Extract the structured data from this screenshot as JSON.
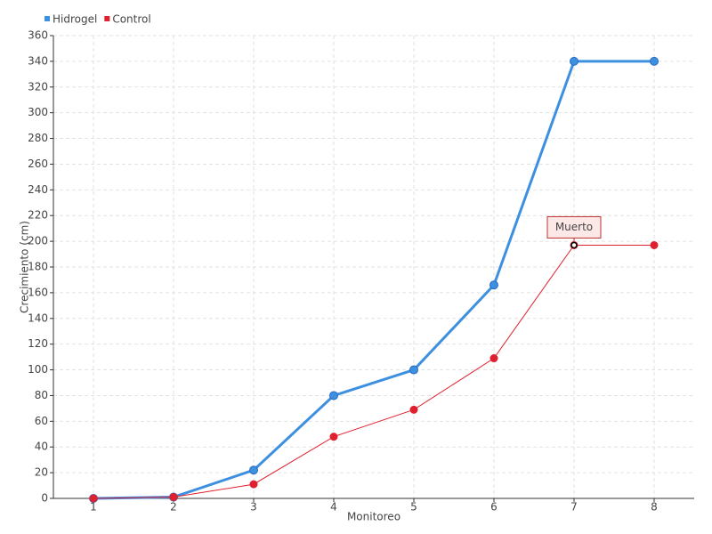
{
  "chart_data": {
    "type": "line",
    "x_label": "Monitoreo",
    "y_label": "Crecimiento (cm)",
    "categories": [
      "1",
      "2",
      "3",
      "4",
      "5",
      "6",
      "7",
      "8"
    ],
    "series": [
      {
        "name": "Hidrogel",
        "color": "#3d8fe0",
        "values": [
          0,
          1,
          22,
          80,
          100,
          166,
          340,
          340
        ]
      },
      {
        "name": "Control",
        "color": "#e0202e",
        "values": [
          0,
          1,
          11,
          48,
          69,
          109,
          197,
          197
        ]
      }
    ],
    "annotation": "Muerto",
    "ylim": [
      0,
      360
    ],
    "yticks": [
      0,
      20,
      40,
      60,
      80,
      100,
      120,
      140,
      160,
      180,
      200,
      220,
      240,
      260,
      280,
      300,
      320,
      340,
      360
    ],
    "grid": true,
    "legend": "top-left"
  }
}
